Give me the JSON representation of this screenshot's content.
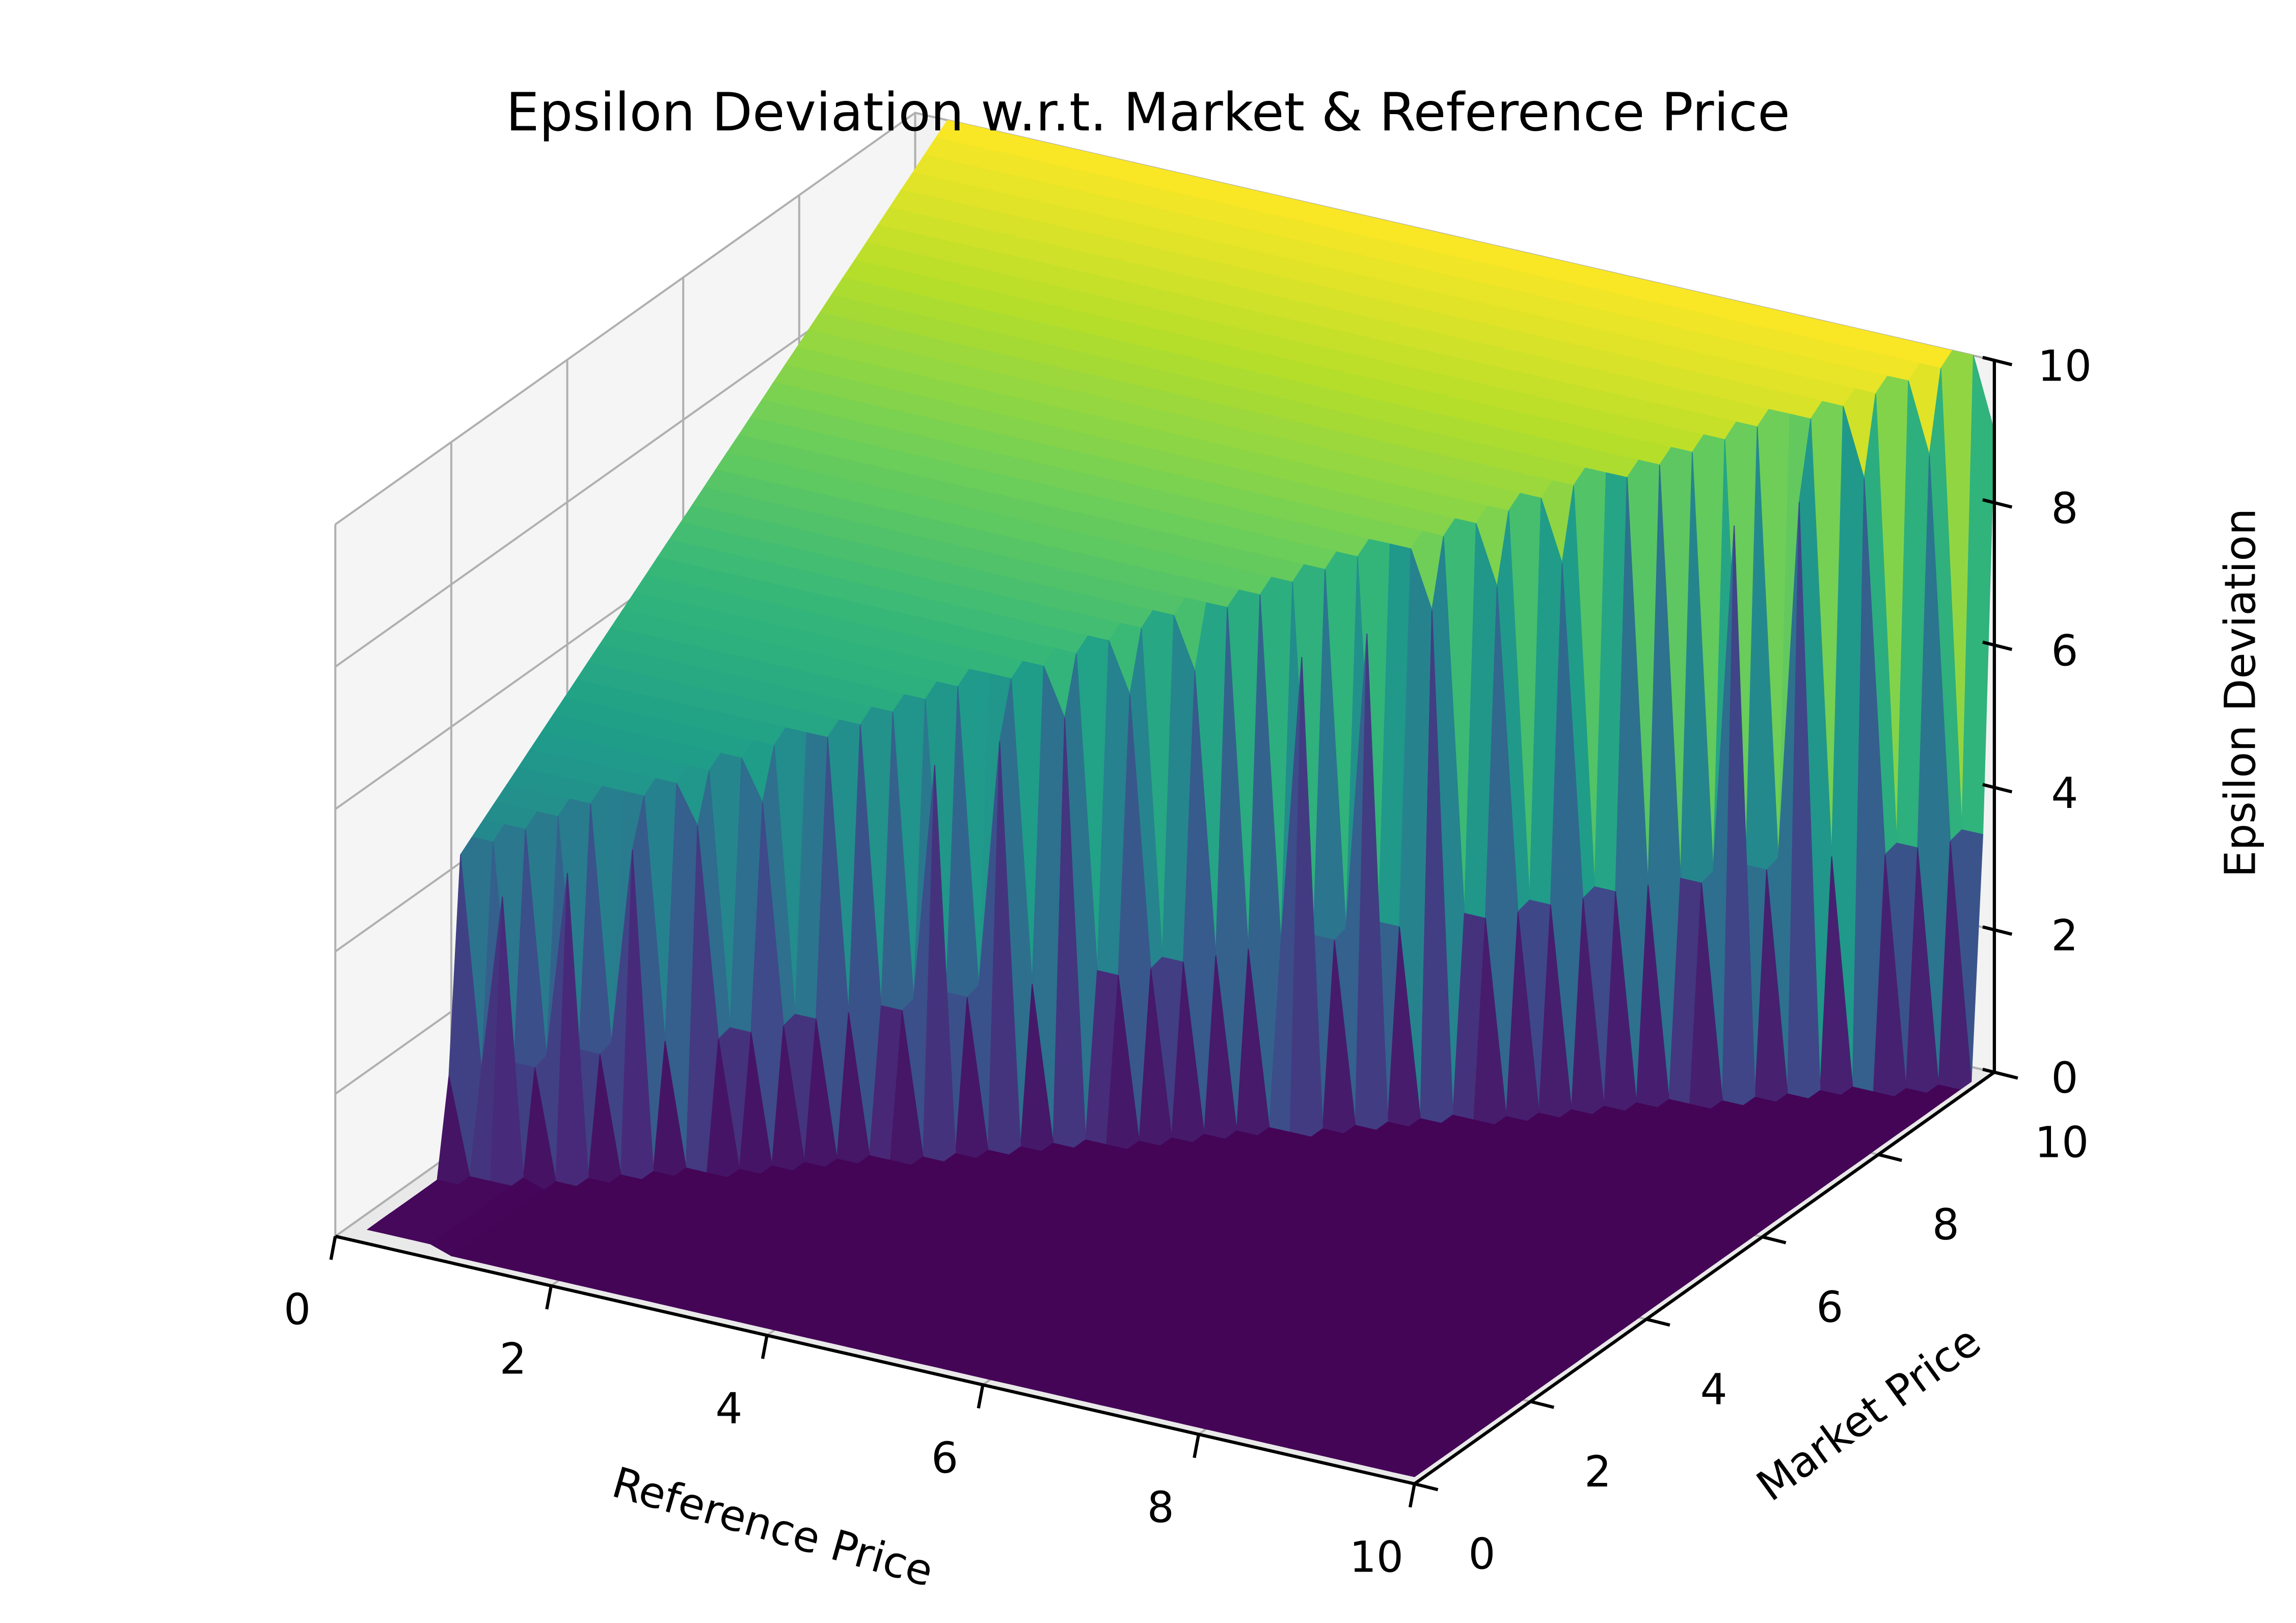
{
  "chart_data": {
    "type": "surface3d",
    "title": "Epsilon Deviation w.r.t. Market & Reference Price",
    "xlabel": "Reference Price",
    "ylabel": "Market Price",
    "zlabel": "Epsilon Deviation",
    "xlim": [
      0,
      10
    ],
    "ylim": [
      0,
      10
    ],
    "zlim": [
      0,
      10
    ],
    "x_ticks": [
      0,
      2,
      4,
      6,
      8,
      10
    ],
    "y_ticks": [
      0,
      2,
      4,
      6,
      8,
      10
    ],
    "z_ticks": [
      0,
      2,
      4,
      6,
      8,
      10
    ],
    "x_tick_labels": [
      "0",
      "2",
      "4",
      "6",
      "8",
      "10"
    ],
    "y_tick_labels": [
      "0",
      "2",
      "4",
      "6",
      "8",
      "10"
    ],
    "z_tick_labels": [
      "0",
      "2",
      "4",
      "6",
      "8",
      "10"
    ],
    "colormap": "viridis",
    "grid": true,
    "surface": {
      "x_range": [
        0.3,
        10
      ],
      "y_range": [
        0,
        10
      ],
      "description_values": {
        "plateau_z_at_y_min": 3.5,
        "plateau_z_at_y_max": 10,
        "plateau_start_x": 3.6,
        "base_z": 0.1,
        "front_ridge_z": 0.2,
        "num_spikes": 40
      }
    }
  },
  "colors": {
    "viridis": [
      "#440154",
      "#482878",
      "#3e4989",
      "#31688e",
      "#26828e",
      "#1f9e89",
      "#35b779",
      "#6ece58",
      "#b5de2b",
      "#fde725"
    ],
    "pane": "#f2f2f2",
    "grid": "#b0b0b0"
  }
}
